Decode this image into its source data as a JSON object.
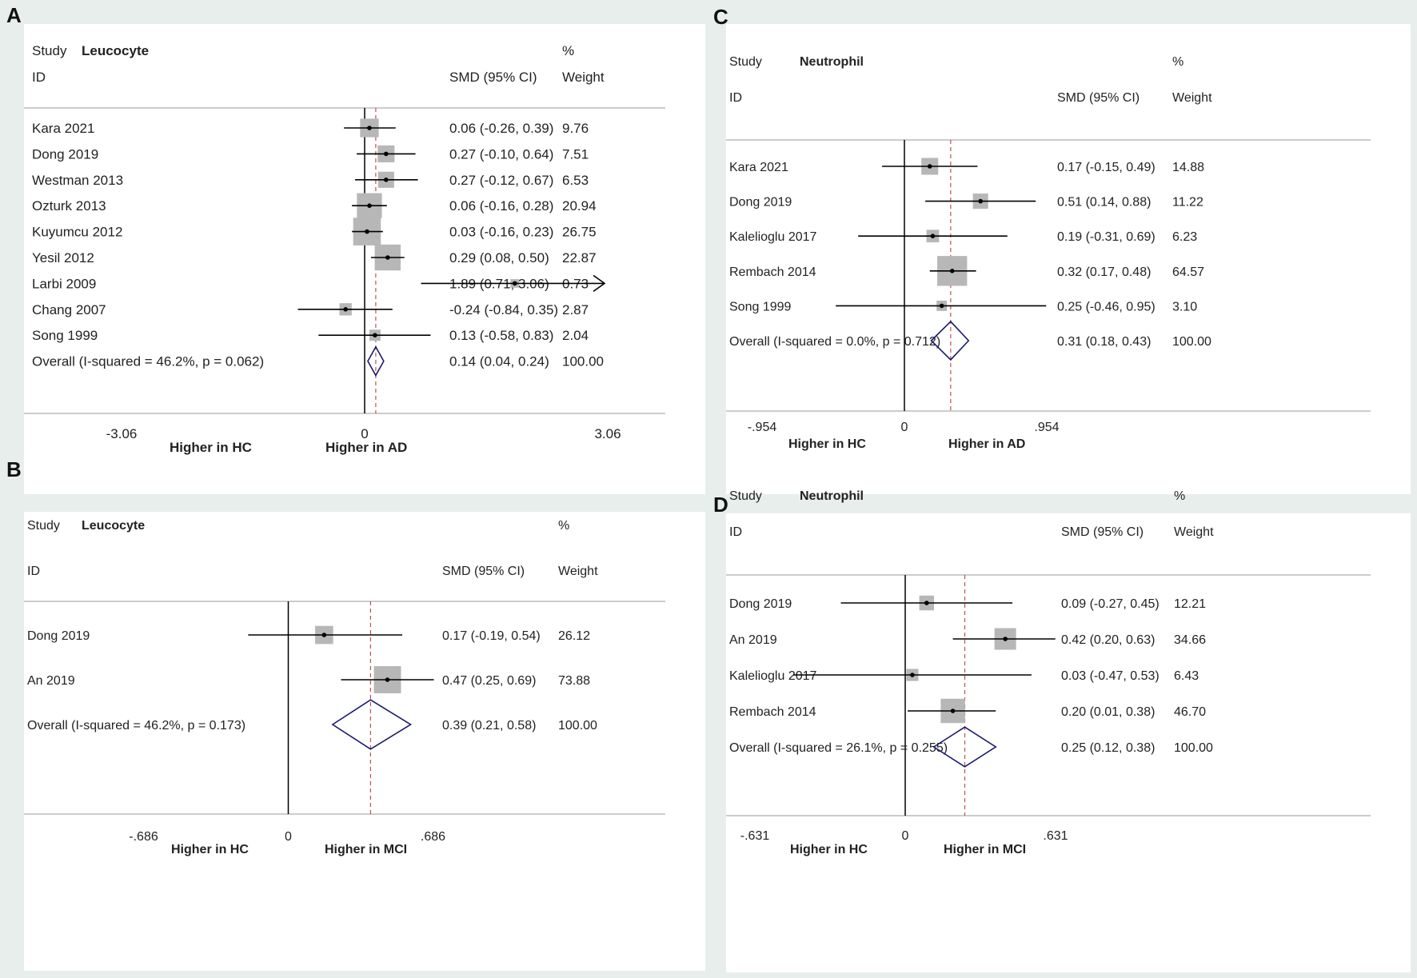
{
  "chart_data": [
    {
      "panel": "A",
      "type": "forest",
      "title": "Leucocyte",
      "header": {
        "study": "Study",
        "id": "ID",
        "effect": "SMD (95% CI)",
        "pct": "%",
        "weight": "Weight"
      },
      "xlim": [
        -3.06,
        3.06
      ],
      "ticks": [
        {
          "v": -3.06,
          "label": "-3.06"
        },
        {
          "v": 0,
          "label": "0"
        },
        {
          "v": 3.06,
          "label": "3.06"
        }
      ],
      "xlabel_left": "Higher in HC",
      "xlabel_right": "Higher in AD",
      "studies": [
        {
          "name": "Kara 2021",
          "smd": 0.06,
          "lo": -0.26,
          "hi": 0.39,
          "ci": "0.06 (-0.26, 0.39)",
          "weight": "9.76",
          "w": 9.76
        },
        {
          "name": "Dong 2019",
          "smd": 0.27,
          "lo": -0.1,
          "hi": 0.64,
          "ci": "0.27 (-0.10, 0.64)",
          "weight": "7.51",
          "w": 7.51
        },
        {
          "name": "Westman 2013",
          "smd": 0.27,
          "lo": -0.12,
          "hi": 0.67,
          "ci": "0.27 (-0.12, 0.67)",
          "weight": "6.53",
          "w": 6.53
        },
        {
          "name": "Ozturk 2013",
          "smd": 0.06,
          "lo": -0.16,
          "hi": 0.28,
          "ci": "0.06 (-0.16, 0.28)",
          "weight": "20.94",
          "w": 20.94
        },
        {
          "name": "Kuyumcu 2012",
          "smd": 0.03,
          "lo": -0.16,
          "hi": 0.23,
          "ci": "0.03 (-0.16, 0.23)",
          "weight": "26.75",
          "w": 26.75
        },
        {
          "name": "Yesil 2012",
          "smd": 0.29,
          "lo": 0.08,
          "hi": 0.5,
          "ci": "0.29 (0.08, 0.50)",
          "weight": "22.87",
          "w": 22.87
        },
        {
          "name": "Larbi 2009",
          "smd": 1.89,
          "lo": 0.71,
          "hi": 3.06,
          "ci": "1.89 (0.71, 3.06)",
          "weight": "0.73",
          "w": 0.73,
          "arrow": true
        },
        {
          "name": "Chang 2007",
          "smd": -0.24,
          "lo": -0.84,
          "hi": 0.35,
          "ci": "-0.24 (-0.84, 0.35)",
          "weight": "2.87",
          "w": 2.87
        },
        {
          "name": "Song 1999",
          "smd": 0.13,
          "lo": -0.58,
          "hi": 0.83,
          "ci": "0.13 (-0.58, 0.83)",
          "weight": "2.04",
          "w": 2.04
        }
      ],
      "overall": {
        "label": "Overall  (I-squared = 46.2%, p = 0.062)",
        "smd": 0.14,
        "lo": 0.04,
        "hi": 0.24,
        "ci": "0.14 (0.04, 0.24)",
        "weight": "100.00"
      }
    },
    {
      "panel": "B",
      "type": "forest",
      "title": "Leucocyte",
      "header": {
        "study": "Study",
        "id": "ID",
        "effect": "SMD (95% CI)",
        "pct": "%",
        "weight": "Weight"
      },
      "xlim": [
        -0.686,
        0.686
      ],
      "ticks": [
        {
          "v": -0.686,
          "label": "-.686"
        },
        {
          "v": 0,
          "label": "0"
        },
        {
          "v": 0.686,
          "label": ".686"
        }
      ],
      "xlabel_left": "Higher in HC",
      "xlabel_right": "Higher in MCI",
      "studies": [
        {
          "name": "Dong 2019",
          "smd": 0.17,
          "lo": -0.19,
          "hi": 0.54,
          "ci": "0.17 (-0.19, 0.54)",
          "weight": "26.12",
          "w": 26.12
        },
        {
          "name": "An 2019",
          "smd": 0.47,
          "lo": 0.25,
          "hi": 0.69,
          "ci": "0.47 (0.25, 0.69)",
          "weight": "73.88",
          "w": 73.88
        }
      ],
      "overall": {
        "label": "Overall  (I-squared = 46.2%, p = 0.173)",
        "smd": 0.39,
        "lo": 0.21,
        "hi": 0.58,
        "ci": "0.39 (0.21, 0.58)",
        "weight": "100.00"
      }
    },
    {
      "panel": "C",
      "type": "forest",
      "title": "Neutrophil",
      "header": {
        "study": "Study",
        "id": "ID",
        "effect": "SMD (95% CI)",
        "pct": "%",
        "weight": "Weight"
      },
      "xlim": [
        -0.954,
        0.954
      ],
      "ticks": [
        {
          "v": -0.954,
          "label": "-.954"
        },
        {
          "v": 0,
          "label": "0"
        },
        {
          "v": 0.954,
          "label": ".954"
        }
      ],
      "xlabel_left": "Higher in HC",
      "xlabel_right": "Higher in AD",
      "studies": [
        {
          "name": "Kara 2021",
          "smd": 0.17,
          "lo": -0.15,
          "hi": 0.49,
          "ci": "0.17 (-0.15, 0.49)",
          "weight": "14.88",
          "w": 14.88
        },
        {
          "name": "Dong 2019",
          "smd": 0.51,
          "lo": 0.14,
          "hi": 0.88,
          "ci": "0.51 (0.14, 0.88)",
          "weight": "11.22",
          "w": 11.22
        },
        {
          "name": "Kalelioglu 2017",
          "smd": 0.19,
          "lo": -0.31,
          "hi": 0.69,
          "ci": "0.19 (-0.31, 0.69)",
          "weight": "6.23",
          "w": 6.23
        },
        {
          "name": "Rembach 2014",
          "smd": 0.32,
          "lo": 0.17,
          "hi": 0.48,
          "ci": "0.32 (0.17, 0.48)",
          "weight": "64.57",
          "w": 64.57
        },
        {
          "name": "Song 1999",
          "smd": 0.25,
          "lo": -0.46,
          "hi": 0.95,
          "ci": "0.25 (-0.46, 0.95)",
          "weight": "3.10",
          "w": 3.1
        }
      ],
      "overall": {
        "label": "Overall  (I-squared = 0.0%, p = 0.712)",
        "smd": 0.31,
        "lo": 0.18,
        "hi": 0.43,
        "ci": "0.31 (0.18, 0.43)",
        "weight": "100.00"
      }
    },
    {
      "panel": "D",
      "type": "forest",
      "title": "Neutrophil",
      "header": {
        "study": "Study",
        "id": "ID",
        "effect": "SMD (95% CI)",
        "pct": "%",
        "weight": "Weight"
      },
      "xlim": [
        -0.631,
        0.631
      ],
      "ticks": [
        {
          "v": -0.631,
          "label": "-.631"
        },
        {
          "v": 0,
          "label": "0"
        },
        {
          "v": 0.631,
          "label": ".631"
        }
      ],
      "xlabel_left": "Higher in HC",
      "xlabel_right": "Higher in MCI",
      "studies": [
        {
          "name": "Dong 2019",
          "smd": 0.09,
          "lo": -0.27,
          "hi": 0.45,
          "ci": "0.09 (-0.27, 0.45)",
          "weight": "12.21",
          "w": 12.21
        },
        {
          "name": "An 2019",
          "smd": 0.42,
          "lo": 0.2,
          "hi": 0.63,
          "ci": "0.42 (0.20, 0.63)",
          "weight": "34.66",
          "w": 34.66
        },
        {
          "name": "Kalelioglu 2017",
          "smd": 0.03,
          "lo": -0.47,
          "hi": 0.53,
          "ci": "0.03 (-0.47, 0.53)",
          "weight": "6.43",
          "w": 6.43
        },
        {
          "name": "Rembach 2014",
          "smd": 0.2,
          "lo": 0.01,
          "hi": 0.38,
          "ci": "0.20 (0.01, 0.38)",
          "weight": "46.70",
          "w": 46.7
        }
      ],
      "overall": {
        "label": "Overall  (I-squared = 26.1%, p = 0.255)",
        "smd": 0.25,
        "lo": 0.12,
        "hi": 0.38,
        "ci": "0.25 (0.12, 0.38)",
        "weight": "100.00"
      }
    }
  ],
  "colors": {
    "square": "#b7b7b7",
    "diamond": "#1a1a6e",
    "overall_line": "#c0504d",
    "line": "#000000"
  }
}
